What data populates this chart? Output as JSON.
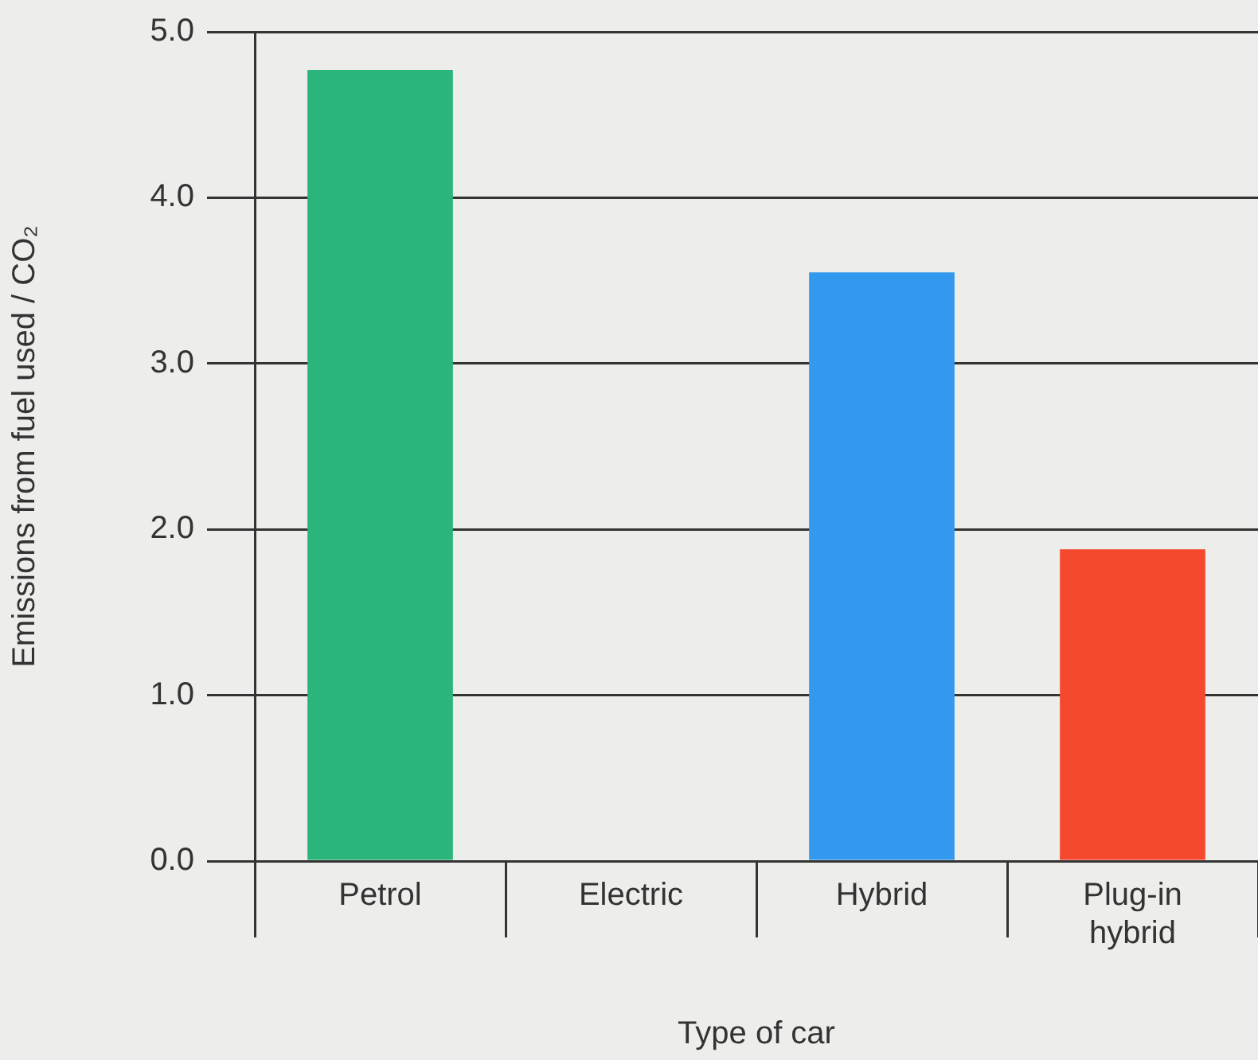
{
  "chart_data": {
    "type": "bar",
    "xlabel": "Type of car",
    "ylabel": "Emissions from fuel used / CO₂",
    "categories": [
      "Petrol",
      "Electric",
      "Hybrid",
      "Plug-in hybrid"
    ],
    "values": [
      4.77,
      0,
      3.55,
      1.88
    ],
    "colors": [
      "#2bb57a",
      null,
      "#3399ee",
      "#f5492f"
    ],
    "ylim": [
      0,
      5
    ],
    "yticks": [
      {
        "value": 0,
        "label": "0.0"
      },
      {
        "value": 1,
        "label": "1.0"
      },
      {
        "value": 2,
        "label": "2.0"
      },
      {
        "value": 3,
        "label": "3.0"
      },
      {
        "value": 4,
        "label": "4.0"
      },
      {
        "value": 5,
        "label": "5.0"
      }
    ],
    "grid": "y",
    "legend": false
  }
}
